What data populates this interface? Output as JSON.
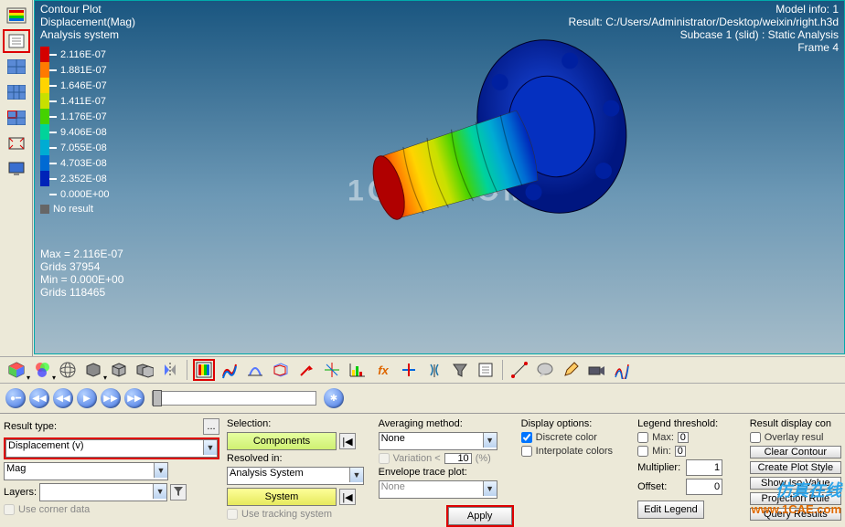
{
  "header": {
    "plot_type": "Contour Plot",
    "result_label": "Displacement(Mag)",
    "system_label": "Analysis system"
  },
  "model_info": {
    "line1": "Model info: 1",
    "line2": "Result: C:/Users/Administrator/Desktop/weixin/right.h3d",
    "line3": "Subcase 1 (slid) : Static Analysis",
    "line4": "Frame 4"
  },
  "legend": {
    "colors": [
      "#d40000",
      "#ff7a00",
      "#ffd400",
      "#c7e000",
      "#45d200",
      "#00d39a",
      "#00acd3",
      "#006ad3",
      "#0023b8"
    ],
    "values": [
      "2.116E-07",
      "1.881E-07",
      "1.646E-07",
      "1.411E-07",
      "1.176E-07",
      "9.406E-08",
      "7.055E-08",
      "4.703E-08",
      "2.352E-08",
      "0.000E+00"
    ],
    "noresult": "No result"
  },
  "info": {
    "max": "Max = 2.116E-07",
    "grids1": "Grids 37954",
    "min": "Min = 0.000E+00",
    "grids2": "Grids 118465"
  },
  "watermark": "1CAE.COM",
  "panel": {
    "result_type_lbl": "Result type:",
    "result_type_val": "Displacement (v)",
    "component_val": "Mag",
    "layers_lbl": "Layers:",
    "layers_val": "",
    "use_corner": "Use corner data",
    "selection_lbl": "Selection:",
    "components_btn": "Components",
    "resolved_lbl": "Resolved in:",
    "resolved_val": "Analysis System",
    "system_btn": "System",
    "use_tracking": "Use tracking system",
    "avg_lbl": "Averaging method:",
    "avg_val": "None",
    "variation_lbl": "Variation <",
    "variation_val": "10",
    "variation_pct": "(%)",
    "env_lbl": "Envelope trace plot:",
    "env_val": "None",
    "apply_btn": "Apply",
    "display_lbl": "Display options:",
    "discrete": "Discrete color",
    "interpolate": "Interpolate colors",
    "legend_lbl": "Legend threshold:",
    "max_lbl": "Max:",
    "max_val": "0",
    "min_lbl": "Min:",
    "min_val": "0",
    "mult_lbl": "Multiplier:",
    "mult_val": "1",
    "offset_lbl": "Offset:",
    "offset_val": "0",
    "edit_legend": "Edit Legend",
    "resdisp_lbl": "Result display con",
    "overlay": "Overlay resul",
    "clear_contour": "Clear Contour",
    "create_plot": "Create Plot Style",
    "show_iso": "Show Iso Value",
    "projection": "Projection Rule",
    "query": "Query Results"
  },
  "footer_brand": "仿真在线",
  "footer_url": "www.1CAE.com"
}
